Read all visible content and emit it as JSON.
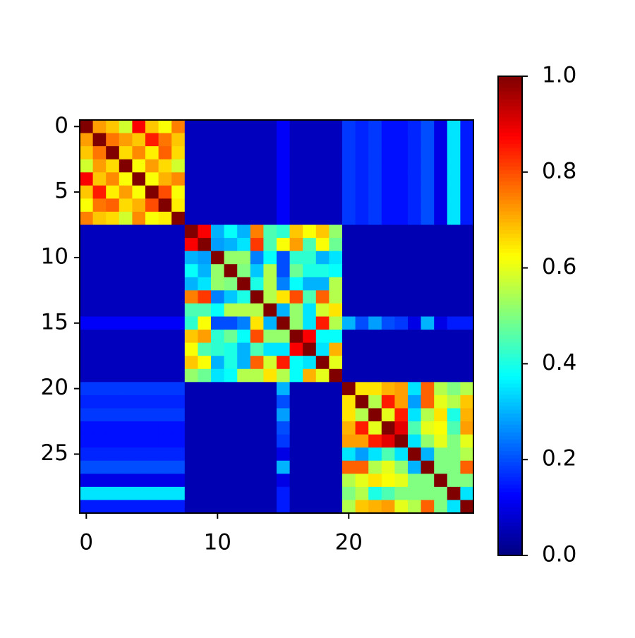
{
  "chart_data": {
    "type": "heatmap",
    "colormap": "jet",
    "clim": [
      0,
      1
    ],
    "xlim": [
      -0.5,
      29.5
    ],
    "ylim": [
      29.5,
      -0.5
    ],
    "xticks": [
      0,
      10,
      20
    ],
    "yticks": [
      0,
      5,
      10,
      15,
      20,
      25
    ],
    "cticks": [
      {
        "value": 0,
        "label": "0.0"
      },
      {
        "value": 0.2,
        "label": "0.2"
      },
      {
        "value": 0.4,
        "label": "0.4"
      },
      {
        "value": 0.6,
        "label": "0.6"
      },
      {
        "value": 0.8,
        "label": "0.8"
      },
      {
        "value": 1,
        "label": "1.0"
      }
    ],
    "z": [
      [
        1,
        0.72,
        0.68,
        0.58,
        0.88,
        0.68,
        0.62,
        0.75,
        0.06,
        0.06,
        0.06,
        0.06,
        0.06,
        0.06,
        0.06,
        0.12,
        0.06,
        0.06,
        0.06,
        0.06,
        0.18,
        0.16,
        0.18,
        0.14,
        0.14,
        0.16,
        0.2,
        0.1,
        0.35,
        0.15
      ],
      [
        0.72,
        1,
        0.76,
        0.72,
        0.68,
        0.85,
        0.76,
        0.68,
        0.06,
        0.06,
        0.06,
        0.06,
        0.06,
        0.06,
        0.06,
        0.12,
        0.06,
        0.06,
        0.06,
        0.06,
        0.18,
        0.16,
        0.18,
        0.14,
        0.14,
        0.16,
        0.2,
        0.1,
        0.35,
        0.15
      ],
      [
        0.68,
        0.76,
        1,
        0.66,
        0.74,
        0.64,
        0.78,
        0.66,
        0.06,
        0.06,
        0.06,
        0.06,
        0.06,
        0.06,
        0.06,
        0.12,
        0.06,
        0.06,
        0.06,
        0.06,
        0.18,
        0.16,
        0.18,
        0.14,
        0.14,
        0.16,
        0.2,
        0.1,
        0.35,
        0.15
      ],
      [
        0.58,
        0.72,
        0.66,
        1,
        0.62,
        0.72,
        0.66,
        0.58,
        0.06,
        0.06,
        0.06,
        0.06,
        0.06,
        0.06,
        0.06,
        0.12,
        0.06,
        0.06,
        0.06,
        0.06,
        0.18,
        0.16,
        0.18,
        0.14,
        0.14,
        0.16,
        0.2,
        0.1,
        0.35,
        0.15
      ],
      [
        0.88,
        0.68,
        0.74,
        0.62,
        1,
        0.62,
        0.7,
        0.74,
        0.06,
        0.06,
        0.06,
        0.06,
        0.06,
        0.06,
        0.06,
        0.12,
        0.06,
        0.06,
        0.06,
        0.06,
        0.18,
        0.16,
        0.18,
        0.14,
        0.14,
        0.16,
        0.2,
        0.1,
        0.35,
        0.15
      ],
      [
        0.68,
        0.85,
        0.64,
        0.72,
        0.62,
        1,
        0.8,
        0.62,
        0.06,
        0.06,
        0.06,
        0.06,
        0.06,
        0.06,
        0.06,
        0.12,
        0.06,
        0.06,
        0.06,
        0.06,
        0.18,
        0.16,
        0.18,
        0.14,
        0.14,
        0.16,
        0.2,
        0.1,
        0.35,
        0.15
      ],
      [
        0.62,
        0.76,
        0.78,
        0.66,
        0.7,
        0.8,
        1,
        0.64,
        0.06,
        0.06,
        0.06,
        0.06,
        0.06,
        0.06,
        0.06,
        0.12,
        0.06,
        0.06,
        0.06,
        0.06,
        0.18,
        0.16,
        0.18,
        0.14,
        0.14,
        0.16,
        0.2,
        0.1,
        0.35,
        0.15
      ],
      [
        0.75,
        0.68,
        0.66,
        0.58,
        0.74,
        0.62,
        0.64,
        1,
        0.06,
        0.06,
        0.06,
        0.06,
        0.06,
        0.06,
        0.06,
        0.12,
        0.06,
        0.06,
        0.06,
        0.06,
        0.18,
        0.16,
        0.18,
        0.14,
        0.14,
        0.16,
        0.2,
        0.1,
        0.35,
        0.15
      ],
      [
        0.06,
        0.06,
        0.06,
        0.06,
        0.06,
        0.06,
        0.06,
        0.06,
        1,
        0.88,
        0.3,
        0.38,
        0.3,
        0.75,
        0.45,
        0.42,
        0.68,
        0.62,
        0.68,
        0.52,
        0.05,
        0.05,
        0.05,
        0.05,
        0.05,
        0.05,
        0.05,
        0.05,
        0.05,
        0.05
      ],
      [
        0.06,
        0.06,
        0.06,
        0.06,
        0.06,
        0.06,
        0.06,
        0.06,
        0.88,
        1,
        0.28,
        0.3,
        0.35,
        0.82,
        0.45,
        0.62,
        0.72,
        0.45,
        0.62,
        0.48,
        0.05,
        0.05,
        0.05,
        0.05,
        0.05,
        0.05,
        0.05,
        0.05,
        0.05,
        0.05
      ],
      [
        0.06,
        0.06,
        0.06,
        0.06,
        0.06,
        0.06,
        0.06,
        0.06,
        0.3,
        0.28,
        1,
        0.52,
        0.52,
        0.25,
        0.38,
        0.2,
        0.42,
        0.42,
        0.3,
        0.35,
        0.05,
        0.05,
        0.05,
        0.05,
        0.05,
        0.05,
        0.05,
        0.05,
        0.05,
        0.05
      ],
      [
        0.06,
        0.06,
        0.06,
        0.06,
        0.06,
        0.06,
        0.06,
        0.06,
        0.38,
        0.3,
        0.52,
        1,
        0.5,
        0.32,
        0.55,
        0.2,
        0.48,
        0.4,
        0.4,
        0.38,
        0.05,
        0.05,
        0.05,
        0.05,
        0.05,
        0.05,
        0.05,
        0.05,
        0.05,
        0.05
      ],
      [
        0.06,
        0.06,
        0.06,
        0.06,
        0.06,
        0.06,
        0.06,
        0.06,
        0.3,
        0.35,
        0.52,
        0.5,
        1,
        0.4,
        0.55,
        0.25,
        0.38,
        0.3,
        0.3,
        0.55,
        0.05,
        0.05,
        0.05,
        0.05,
        0.05,
        0.05,
        0.05,
        0.05,
        0.05,
        0.05
      ],
      [
        0.06,
        0.06,
        0.06,
        0.06,
        0.06,
        0.06,
        0.06,
        0.06,
        0.75,
        0.82,
        0.25,
        0.32,
        0.4,
        1,
        0.55,
        0.65,
        0.8,
        0.45,
        0.78,
        0.55,
        0.05,
        0.05,
        0.05,
        0.05,
        0.05,
        0.05,
        0.05,
        0.05,
        0.05,
        0.05
      ],
      [
        0.06,
        0.06,
        0.06,
        0.06,
        0.06,
        0.06,
        0.06,
        0.06,
        0.45,
        0.45,
        0.38,
        0.55,
        0.55,
        0.55,
        1,
        0.3,
        0.52,
        0.35,
        0.58,
        0.65,
        0.05,
        0.05,
        0.05,
        0.05,
        0.05,
        0.05,
        0.05,
        0.05,
        0.05,
        0.05
      ],
      [
        0.12,
        0.12,
        0.12,
        0.12,
        0.12,
        0.12,
        0.12,
        0.12,
        0.42,
        0.62,
        0.2,
        0.2,
        0.25,
        0.65,
        0.3,
        1,
        0.52,
        0.35,
        0.85,
        0.55,
        0.3,
        0.2,
        0.28,
        0.2,
        0.18,
        0.1,
        0.3,
        0.1,
        0.15,
        0.15
      ],
      [
        0.06,
        0.06,
        0.06,
        0.06,
        0.06,
        0.06,
        0.06,
        0.06,
        0.68,
        0.72,
        0.42,
        0.48,
        0.38,
        0.8,
        0.52,
        0.52,
        1,
        0.88,
        0.38,
        0.38,
        0.05,
        0.05,
        0.05,
        0.05,
        0.05,
        0.05,
        0.05,
        0.05,
        0.05,
        0.05
      ],
      [
        0.06,
        0.06,
        0.06,
        0.06,
        0.06,
        0.06,
        0.06,
        0.06,
        0.62,
        0.45,
        0.42,
        0.4,
        0.3,
        0.45,
        0.35,
        0.35,
        0.88,
        1,
        0.35,
        0.7,
        0.05,
        0.05,
        0.05,
        0.05,
        0.05,
        0.05,
        0.05,
        0.05,
        0.05,
        0.05
      ],
      [
        0.06,
        0.06,
        0.06,
        0.06,
        0.06,
        0.06,
        0.06,
        0.06,
        0.68,
        0.62,
        0.3,
        0.4,
        0.3,
        0.78,
        0.58,
        0.85,
        0.38,
        0.35,
        1,
        0.6,
        0.05,
        0.05,
        0.05,
        0.05,
        0.05,
        0.05,
        0.05,
        0.05,
        0.05,
        0.05
      ],
      [
        0.06,
        0.06,
        0.06,
        0.06,
        0.06,
        0.06,
        0.06,
        0.06,
        0.52,
        0.48,
        0.35,
        0.38,
        0.55,
        0.55,
        0.65,
        0.55,
        0.38,
        0.7,
        0.6,
        1,
        0.05,
        0.05,
        0.05,
        0.05,
        0.05,
        0.05,
        0.05,
        0.05,
        0.05,
        0.05
      ],
      [
        0.18,
        0.18,
        0.18,
        0.18,
        0.18,
        0.18,
        0.18,
        0.18,
        0.05,
        0.05,
        0.05,
        0.05,
        0.05,
        0.05,
        0.05,
        0.3,
        0.05,
        0.05,
        0.05,
        0.05,
        1,
        0.65,
        0.65,
        0.7,
        0.72,
        0.35,
        0.78,
        0.55,
        0.5,
        0.55
      ],
      [
        0.16,
        0.16,
        0.16,
        0.16,
        0.16,
        0.16,
        0.16,
        0.16,
        0.05,
        0.05,
        0.05,
        0.05,
        0.05,
        0.05,
        0.05,
        0.2,
        0.05,
        0.05,
        0.05,
        0.05,
        0.65,
        1,
        0.55,
        0.85,
        0.72,
        0.28,
        0.78,
        0.6,
        0.55,
        0.68
      ],
      [
        0.18,
        0.18,
        0.18,
        0.18,
        0.18,
        0.18,
        0.18,
        0.18,
        0.05,
        0.05,
        0.05,
        0.05,
        0.05,
        0.05,
        0.05,
        0.28,
        0.05,
        0.05,
        0.05,
        0.05,
        0.65,
        0.55,
        1,
        0.6,
        0.85,
        0.35,
        0.55,
        0.65,
        0.4,
        0.7
      ],
      [
        0.14,
        0.14,
        0.14,
        0.14,
        0.14,
        0.14,
        0.14,
        0.14,
        0.05,
        0.05,
        0.05,
        0.05,
        0.05,
        0.05,
        0.05,
        0.2,
        0.05,
        0.05,
        0.05,
        0.05,
        0.7,
        0.85,
        0.6,
        1,
        0.9,
        0.45,
        0.6,
        0.62,
        0.45,
        0.72
      ],
      [
        0.14,
        0.14,
        0.14,
        0.14,
        0.14,
        0.14,
        0.14,
        0.14,
        0.05,
        0.05,
        0.05,
        0.05,
        0.05,
        0.05,
        0.05,
        0.18,
        0.05,
        0.05,
        0.05,
        0.05,
        0.72,
        0.72,
        0.85,
        0.9,
        1,
        0.35,
        0.52,
        0.6,
        0.5,
        0.6
      ],
      [
        0.16,
        0.16,
        0.16,
        0.16,
        0.16,
        0.16,
        0.16,
        0.16,
        0.05,
        0.05,
        0.05,
        0.05,
        0.05,
        0.05,
        0.05,
        0.1,
        0.05,
        0.05,
        0.05,
        0.05,
        0.35,
        0.28,
        0.35,
        0.45,
        0.35,
        1,
        0.3,
        0.5,
        0.5,
        0.55
      ],
      [
        0.2,
        0.2,
        0.2,
        0.2,
        0.2,
        0.2,
        0.2,
        0.2,
        0.05,
        0.05,
        0.05,
        0.05,
        0.05,
        0.05,
        0.05,
        0.3,
        0.05,
        0.05,
        0.05,
        0.05,
        0.78,
        0.78,
        0.55,
        0.6,
        0.52,
        0.3,
        1,
        0.5,
        0.5,
        0.78
      ],
      [
        0.1,
        0.1,
        0.1,
        0.1,
        0.1,
        0.1,
        0.1,
        0.1,
        0.05,
        0.05,
        0.05,
        0.05,
        0.05,
        0.05,
        0.05,
        0.1,
        0.05,
        0.05,
        0.05,
        0.05,
        0.55,
        0.6,
        0.65,
        0.62,
        0.6,
        0.5,
        0.5,
        1,
        0.5,
        0.5
      ],
      [
        0.35,
        0.35,
        0.35,
        0.35,
        0.35,
        0.35,
        0.35,
        0.35,
        0.05,
        0.05,
        0.05,
        0.05,
        0.05,
        0.05,
        0.05,
        0.15,
        0.05,
        0.05,
        0.05,
        0.05,
        0.5,
        0.55,
        0.4,
        0.45,
        0.5,
        0.5,
        0.5,
        0.5,
        1,
        0.35
      ],
      [
        0.15,
        0.15,
        0.15,
        0.15,
        0.15,
        0.15,
        0.15,
        0.15,
        0.05,
        0.05,
        0.05,
        0.05,
        0.05,
        0.05,
        0.05,
        0.15,
        0.05,
        0.05,
        0.05,
        0.05,
        0.55,
        0.68,
        0.7,
        0.72,
        0.6,
        0.55,
        0.78,
        0.5,
        0.35,
        1
      ]
    ]
  }
}
